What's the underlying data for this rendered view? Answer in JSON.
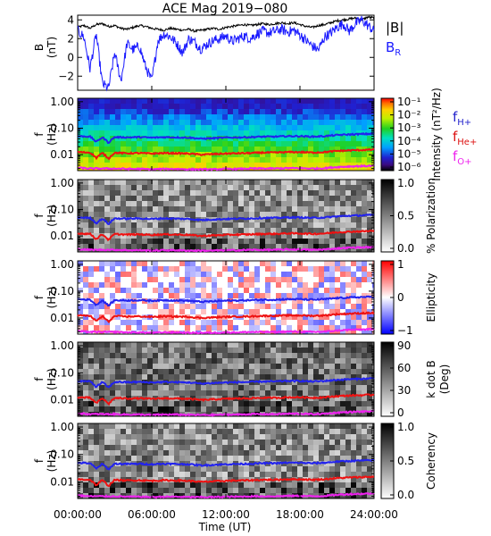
{
  "chart_data": {
    "title": "ACE Mag 2019−080",
    "type": "line+spectrogram",
    "x_axis": {
      "label": "Time (UT)",
      "ticks": [
        "00:00:00",
        "06:00:00",
        "12:00:00",
        "18:00:00",
        "24:00:00"
      ],
      "range_hours": [
        0,
        24
      ]
    },
    "b_panel": {
      "ylabel": "B",
      "yunits": "(nT)",
      "yticks": [
        "4",
        "2",
        "0",
        "−2"
      ],
      "ylim": [
        -3.5,
        4.5
      ],
      "legend": [
        {
          "label": "|B|",
          "color": "#000000"
        },
        {
          "label": "B",
          "sub": "R",
          "color": "#1a1aff"
        }
      ],
      "series": [
        {
          "name": "|B|",
          "color": "#000000",
          "x": [
            0,
            0.5,
            1,
            1.5,
            2,
            2.5,
            3,
            3.5,
            4,
            4.5,
            5,
            5.5,
            6,
            6.5,
            7,
            7.5,
            8,
            8.5,
            9,
            9.5,
            10,
            10.5,
            11,
            11.5,
            12,
            12.5,
            13,
            13.5,
            14,
            14.5,
            15,
            15.5,
            16,
            16.5,
            17,
            17.5,
            18,
            18.5,
            19,
            19.5,
            20,
            20.5,
            21,
            21.5,
            22,
            22.5,
            23,
            23.5,
            24
          ],
          "y": [
            3.2,
            3.4,
            3.1,
            3.5,
            3.6,
            3.3,
            3.4,
            3.1,
            3.0,
            3.2,
            3.4,
            3.3,
            3.1,
            3.0,
            2.9,
            3.1,
            3.0,
            2.9,
            3.0,
            2.8,
            2.9,
            3.0,
            3.1,
            3.0,
            3.2,
            3.3,
            3.4,
            3.5,
            3.4,
            3.5,
            3.6,
            3.5,
            3.6,
            3.7,
            3.6,
            3.7,
            3.5,
            3.3,
            3.2,
            3.4,
            3.5,
            3.7,
            3.9,
            4.0,
            4.1,
            4.2,
            4.0,
            4.3,
            4.2
          ]
        },
        {
          "name": "B_R",
          "color": "#1a1aff",
          "x": [
            0,
            0.5,
            1,
            1.5,
            2,
            2.5,
            3,
            3.5,
            4,
            4.5,
            5,
            5.5,
            6,
            6.5,
            7,
            7.5,
            8,
            8.5,
            9,
            9.5,
            10,
            10.5,
            11,
            11.5,
            12,
            12.5,
            13,
            13.5,
            14,
            14.5,
            15,
            15.5,
            16,
            16.5,
            17,
            17.5,
            18,
            18.5,
            19,
            19.5,
            20,
            20.5,
            21,
            21.5,
            22,
            22.5,
            23,
            23.5,
            24
          ],
          "y": [
            2.8,
            2.2,
            -1.2,
            2.5,
            -2.8,
            -3.3,
            0.5,
            -2.5,
            1.5,
            0.8,
            1.2,
            -1.0,
            -2.5,
            1.8,
            2.5,
            2.2,
            1.5,
            0.5,
            2.0,
            1.6,
            0.9,
            1.4,
            1.8,
            2.0,
            2.3,
            1.7,
            2.0,
            2.3,
            2.0,
            2.5,
            2.8,
            2.6,
            2.8,
            3.0,
            2.7,
            2.9,
            2.4,
            1.8,
            1.2,
            0.8,
            2.2,
            2.6,
            3.2,
            3.6,
            2.8,
            3.6,
            4.0,
            3.4,
            2.8
          ]
        }
      ]
    },
    "spectrogram_panels": [
      {
        "name": "intensity",
        "ylabel": "f",
        "yunits": "(Hz)",
        "yticks": [
          "1.00",
          "0.10",
          "0.01"
        ],
        "colormap": "rainbow",
        "colorbar_ticks": [
          "10⁻¹",
          "10⁻²",
          "10⁻³",
          "10⁻⁴",
          "10⁻⁵",
          "10⁻⁶"
        ],
        "colorbar_label": "Intensity (nT²/Hz)"
      },
      {
        "name": "polarization",
        "ylabel": "f",
        "yunits": "(Hz)",
        "yticks": [
          "1.00",
          "0.10",
          "0.01"
        ],
        "colormap": "gray",
        "colorbar_ticks": [
          "1.0",
          "0.5",
          "0.0"
        ],
        "colorbar_label": "% Polarization"
      },
      {
        "name": "ellipticity",
        "ylabel": "f",
        "yunits": "(Hz)",
        "yticks": [
          "1.00",
          "0.10",
          "0.01"
        ],
        "colormap": "bwr",
        "colorbar_ticks": [
          "1",
          "0",
          "−1"
        ],
        "colorbar_label": "Ellipticity"
      },
      {
        "name": "kdotb",
        "ylabel": "f",
        "yunits": "(Hz)",
        "yticks": [
          "1.00",
          "0.10",
          "0.01"
        ],
        "colormap": "gray",
        "colorbar_ticks": [
          "90",
          "60",
          "30",
          "0"
        ],
        "colorbar_label": "k dot B",
        "colorbar_sublabel": "(Deg)"
      },
      {
        "name": "coherency",
        "ylabel": "f",
        "yunits": "(Hz)",
        "yticks": [
          "1.00",
          "0.10",
          "0.01"
        ],
        "colormap": "gray",
        "colorbar_ticks": [
          "1.0",
          "0.5",
          "0.0"
        ],
        "colorbar_label": "Coherency"
      }
    ],
    "gyrofrequency_legend": [
      {
        "label": "f",
        "sub": "H+",
        "color": "#2222cc"
      },
      {
        "label": "f",
        "sub": "He+",
        "color": "#dd1111"
      },
      {
        "label": "f",
        "sub": "O+",
        "color": "#ee22ee"
      }
    ],
    "gyrofrequency_lines": {
      "x": [
        0,
        1,
        1.5,
        2,
        2.5,
        3,
        4,
        5,
        6,
        7,
        8,
        9,
        10,
        11,
        12,
        13,
        14,
        15,
        16,
        17,
        18,
        19,
        20,
        21,
        22,
        23,
        24
      ],
      "fH_plus": [
        0.05,
        0.048,
        0.03,
        0.045,
        0.028,
        0.046,
        0.045,
        0.046,
        0.044,
        0.046,
        0.045,
        0.044,
        0.04,
        0.042,
        0.044,
        0.045,
        0.046,
        0.048,
        0.048,
        0.05,
        0.05,
        0.048,
        0.05,
        0.055,
        0.058,
        0.06,
        0.062
      ],
      "fHe_plus": [
        0.0125,
        0.012,
        0.0075,
        0.0115,
        0.007,
        0.0118,
        0.0113,
        0.0115,
        0.011,
        0.0115,
        0.0113,
        0.011,
        0.01,
        0.0105,
        0.011,
        0.0113,
        0.0115,
        0.012,
        0.012,
        0.0125,
        0.0125,
        0.012,
        0.0125,
        0.0138,
        0.0145,
        0.015,
        0.0155
      ],
      "fO_plus": [
        0.0032,
        0.003,
        0.003,
        0.003,
        0.003,
        0.003,
        0.0029,
        0.0029,
        0.0028,
        0.0029,
        0.0029,
        0.0028,
        0.0028,
        0.0028,
        0.0029,
        0.0029,
        0.003,
        0.003,
        0.003,
        0.0031,
        0.0031,
        0.003,
        0.0031,
        0.0034,
        0.0036,
        0.0037,
        0.0038
      ]
    }
  }
}
